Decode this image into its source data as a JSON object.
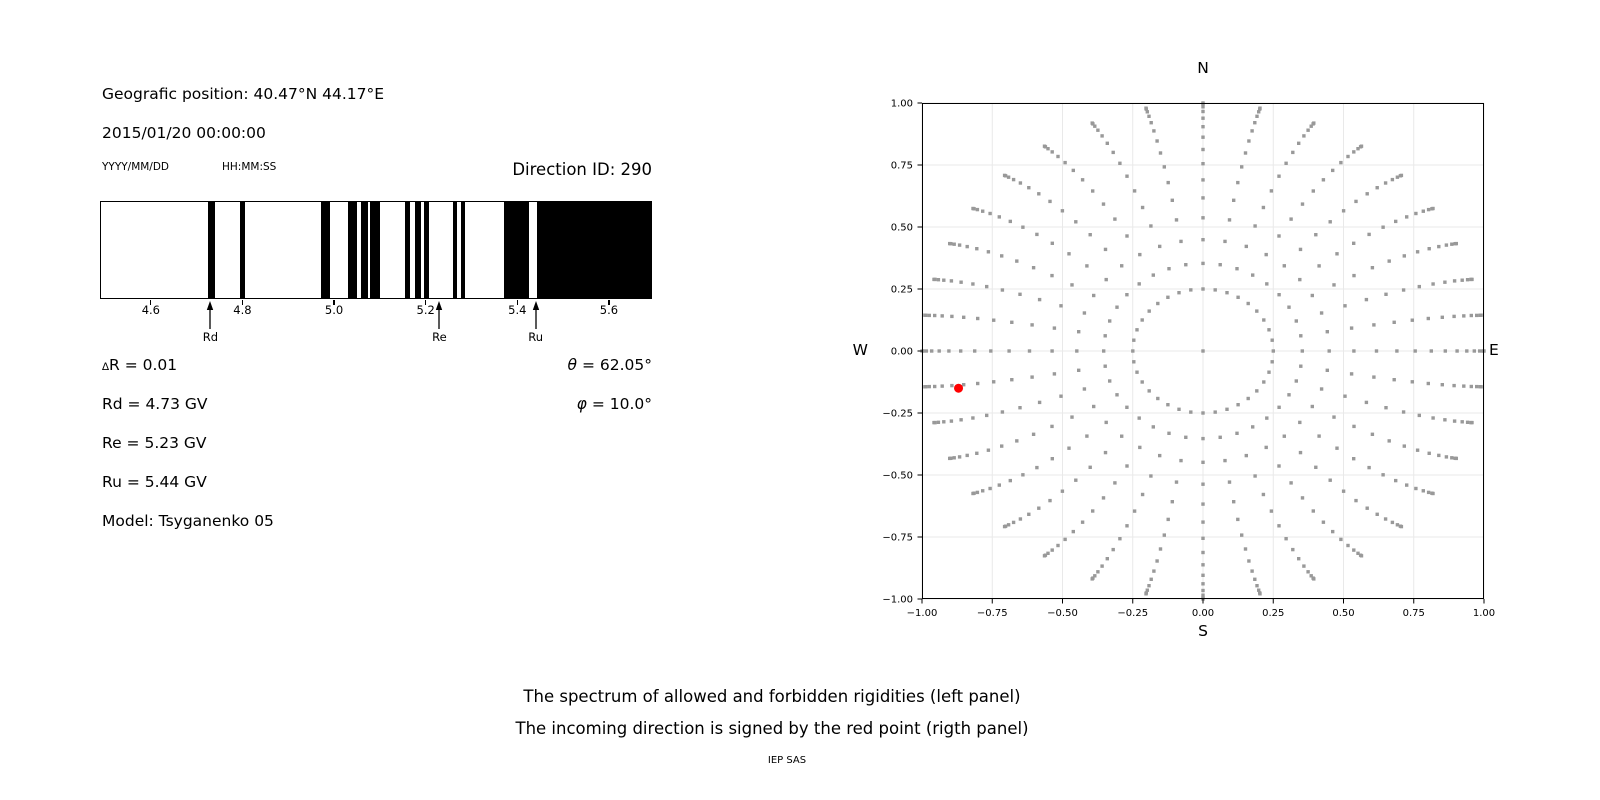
{
  "figure": {
    "background": "#ffffff"
  },
  "header": {
    "position_line": "Geografic position: 40.47°N 44.17°E",
    "datetime_line": "2015/01/20 00:00:00",
    "date_format_label": "YYYY/MM/DD",
    "time_format_label": "HH:MM:SS",
    "direction_id_label": "Direction ID: 290"
  },
  "info_panel": {
    "delta_symbol": "∆",
    "delta_rest": "R = 0.01",
    "rd": "Rd = 4.73 GV",
    "re": "Re = 5.23 GV",
    "ru": "Ru = 5.44 GV",
    "model": "Model: Tsyganenko 05",
    "theta_symbol": "θ",
    "theta_rest": " = 62.05°",
    "phi_symbol": "φ",
    "phi_rest": " = 10.0°"
  },
  "caption": {
    "line1": "The spectrum of allowed and forbidden rigidities (left panel)",
    "line2": "The incoming direction is signed by the red point (rigth panel)",
    "credit": "IEP SAS"
  },
  "chart_data": [
    {
      "id": "rigidity-spectrum",
      "type": "bar",
      "description": "Barcode spectrum: black = allowed, white = forbidden rigidity bands (GV)",
      "xlim": [
        4.489,
        5.694
      ],
      "xticks": [
        4.6,
        4.8,
        5.0,
        5.2,
        5.4,
        5.6
      ],
      "xtick_labels": [
        "4.6",
        "4.8",
        "5.0",
        "5.2",
        "5.4",
        "5.6"
      ],
      "black_segments_gv": [
        [
          4.726,
          4.74
        ],
        [
          4.796,
          4.807
        ],
        [
          4.973,
          4.991
        ],
        [
          5.031,
          5.05
        ],
        [
          5.06,
          5.075
        ],
        [
          5.079,
          5.1
        ],
        [
          5.155,
          5.166
        ],
        [
          5.178,
          5.191
        ],
        [
          5.197,
          5.208
        ],
        [
          5.26,
          5.27
        ],
        [
          5.277,
          5.286
        ],
        [
          5.372,
          5.426
        ],
        [
          5.443,
          5.694
        ]
      ],
      "cutoff_markers": [
        {
          "label": "Rd",
          "value_gv": 4.73
        },
        {
          "label": "Re",
          "value_gv": 5.23
        },
        {
          "label": "Ru",
          "value_gv": 5.44
        }
      ],
      "bar_color": "#000000",
      "background": "#ffffff"
    },
    {
      "id": "asymptotic-directions",
      "type": "scatter",
      "description": "Radial fan of viewing directions; red point marks incoming direction",
      "compass": {
        "top": "N",
        "bottom": "S",
        "left": "W",
        "right": "E"
      },
      "xlim": [
        -1,
        1
      ],
      "ylim": [
        -1,
        1
      ],
      "xticks": [
        -1,
        -0.75,
        -0.5,
        -0.25,
        0,
        0.25,
        0.5,
        0.75,
        1
      ],
      "yticks": [
        1,
        0.75,
        0.5,
        0.25,
        0,
        -0.25,
        -0.5,
        -0.75,
        -1
      ],
      "xtick_labels": [
        "−1.00",
        "−0.75",
        "−0.50",
        "−0.25",
        "0.00",
        "0.25",
        "0.50",
        "0.75",
        "1.00"
      ],
      "ytick_labels": [
        "1.00",
        "0.75",
        "0.50",
        "0.25",
        "0.00",
        "−0.25",
        "−0.50",
        "−0.75",
        "−1.00"
      ],
      "grid": true,
      "grid_color": "#e9e9e9",
      "rays": {
        "count": 36,
        "angle_step_deg": 10,
        "points_per_ray": 15,
        "r_inner": 0.25,
        "r_outer": 1.0,
        "tip_densify_power": 2,
        "curve_max_deg": 5
      },
      "center_point": [
        0,
        0
      ],
      "dot_color": "#999999",
      "dot_size_px": 3.4,
      "red_point": {
        "x": -0.87,
        "y": -0.15,
        "radius_px": 4.5,
        "color": "#ff0000"
      }
    }
  ]
}
